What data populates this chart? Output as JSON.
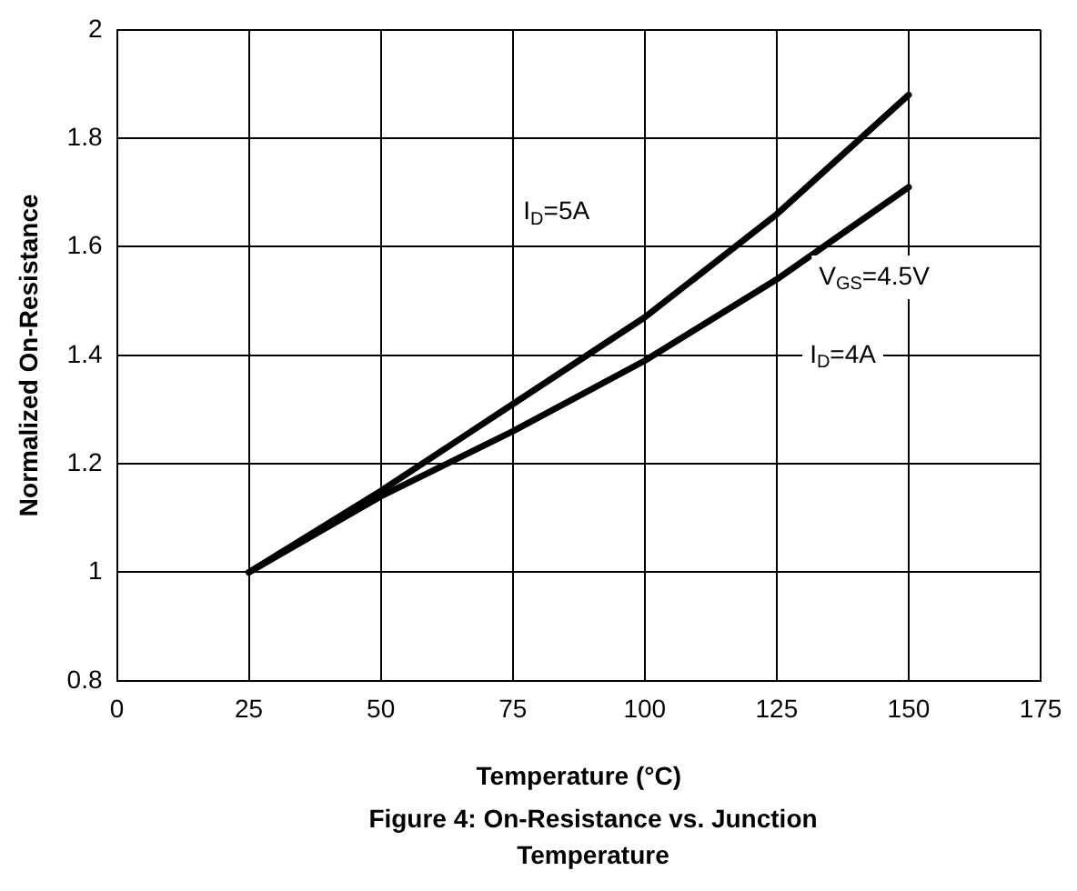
{
  "chart_data": {
    "type": "line",
    "title": "Figure 4: On-Resistance vs. Junction Temperature",
    "xlabel": "Temperature (°C)",
    "ylabel": "Normalized On-Resistance",
    "x": [
      25,
      50,
      75,
      100,
      125,
      150
    ],
    "series": [
      {
        "color": "#000000",
        "values": [
          1,
          1.15,
          1.31,
          1.47,
          1.66,
          1.88
        ]
      },
      {
        "color": "#000000",
        "values": [
          1,
          1.14,
          1.26,
          1.39,
          1.54,
          1.71
        ]
      }
    ],
    "xlim": [
      0,
      175
    ],
    "xticks": [
      0,
      25,
      50,
      75,
      100,
      125,
      150,
      175
    ],
    "ylim": [
      0.8,
      2
    ],
    "yticks": [
      0.8,
      1,
      1.2,
      1.4,
      1.6,
      1.8,
      2
    ],
    "grid": true,
    "legend": false,
    "marker": "none",
    "line_style": "solid",
    "annotations": [
      "I$_{D}$=5A",
      "V$_{GS}$=4.5V",
      "I$_{D}$=4A"
    ]
  }
}
